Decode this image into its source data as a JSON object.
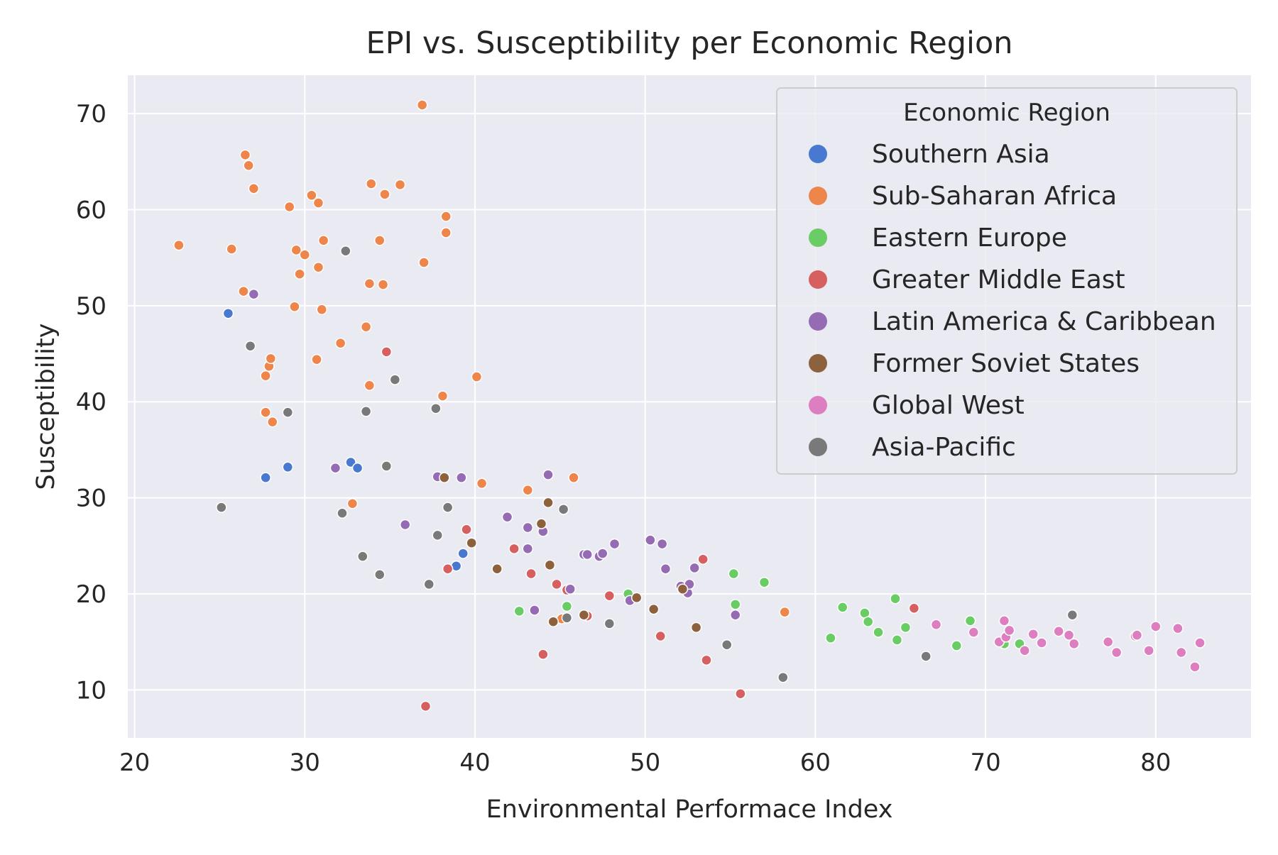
{
  "chart_data": {
    "type": "scatter",
    "title": "EPI vs. Susceptibility per Economic Region",
    "xlabel": "Environmental Performace Index",
    "ylabel": "Susceptibility",
    "xlim": [
      19.6,
      85.6
    ],
    "ylim": [
      5.0,
      74.0
    ],
    "x_ticks": [
      20,
      30,
      40,
      50,
      60,
      70,
      80
    ],
    "y_ticks": [
      10,
      20,
      30,
      40,
      50,
      60,
      70
    ],
    "grid": true,
    "background": "#eaeaf2",
    "legend": {
      "title": "Economic Region",
      "placement": "top-right"
    },
    "series": [
      {
        "name": "Southern Asia",
        "color": "#4878d0",
        "points": [
          [
            25.5,
            49.2
          ],
          [
            27.7,
            32.1
          ],
          [
            29.0,
            33.2
          ],
          [
            32.7,
            33.7
          ],
          [
            33.1,
            33.1
          ],
          [
            39.3,
            24.2
          ],
          [
            38.9,
            22.9
          ]
        ]
      },
      {
        "name": "Sub-Saharan Africa",
        "color": "#ee854a",
        "points": [
          [
            22.6,
            56.3
          ],
          [
            25.7,
            55.9
          ],
          [
            26.5,
            65.7
          ],
          [
            26.7,
            64.6
          ],
          [
            27.0,
            62.2
          ],
          [
            26.4,
            51.5
          ],
          [
            27.7,
            42.7
          ],
          [
            27.9,
            43.7
          ],
          [
            28.0,
            44.5
          ],
          [
            27.7,
            38.9
          ],
          [
            28.1,
            37.9
          ],
          [
            29.1,
            60.3
          ],
          [
            29.4,
            49.9
          ],
          [
            29.5,
            55.8
          ],
          [
            29.7,
            53.3
          ],
          [
            30.0,
            55.3
          ],
          [
            30.4,
            61.5
          ],
          [
            30.7,
            44.4
          ],
          [
            30.8,
            54.0
          ],
          [
            30.8,
            60.7
          ],
          [
            31.0,
            49.6
          ],
          [
            31.1,
            56.8
          ],
          [
            32.1,
            46.1
          ],
          [
            32.8,
            29.4
          ],
          [
            33.6,
            47.8
          ],
          [
            33.8,
            52.3
          ],
          [
            33.8,
            41.7
          ],
          [
            33.9,
            62.7
          ],
          [
            34.4,
            56.8
          ],
          [
            34.6,
            52.2
          ],
          [
            34.7,
            61.6
          ],
          [
            35.6,
            62.6
          ],
          [
            36.9,
            70.9
          ],
          [
            37.0,
            54.5
          ],
          [
            38.1,
            40.6
          ],
          [
            38.3,
            59.3
          ],
          [
            38.3,
            57.6
          ],
          [
            40.1,
            42.6
          ],
          [
            40.4,
            31.5
          ],
          [
            43.1,
            30.8
          ],
          [
            45.8,
            32.1
          ],
          [
            45.1,
            17.4
          ],
          [
            58.2,
            18.1
          ]
        ]
      },
      {
        "name": "Eastern Europe",
        "color": "#6acc64",
        "points": [
          [
            42.6,
            18.2
          ],
          [
            45.4,
            18.7
          ],
          [
            49.0,
            20.0
          ],
          [
            55.2,
            22.1
          ],
          [
            55.3,
            18.9
          ],
          [
            57.0,
            21.2
          ],
          [
            60.9,
            15.4
          ],
          [
            61.6,
            18.6
          ],
          [
            62.9,
            18.0
          ],
          [
            63.1,
            17.1
          ],
          [
            63.7,
            16.0
          ],
          [
            64.7,
            19.5
          ],
          [
            64.8,
            15.2
          ],
          [
            65.3,
            16.5
          ],
          [
            68.3,
            14.6
          ],
          [
            69.1,
            17.2
          ],
          [
            71.1,
            14.8
          ],
          [
            72.0,
            14.8
          ]
        ]
      },
      {
        "name": "Greater Middle East",
        "color": "#d65f5f",
        "points": [
          [
            34.8,
            45.2
          ],
          [
            37.1,
            8.3
          ],
          [
            38.4,
            22.6
          ],
          [
            39.5,
            26.7
          ],
          [
            42.3,
            24.7
          ],
          [
            43.3,
            22.1
          ],
          [
            44.0,
            13.7
          ],
          [
            44.8,
            21.0
          ],
          [
            45.4,
            20.4
          ],
          [
            46.6,
            17.7
          ],
          [
            47.9,
            19.8
          ],
          [
            50.9,
            15.6
          ],
          [
            53.4,
            23.6
          ],
          [
            53.6,
            13.1
          ],
          [
            55.6,
            9.6
          ],
          [
            65.8,
            18.5
          ]
        ]
      },
      {
        "name": "Latin America & Caribbean",
        "color": "#956cb4",
        "points": [
          [
            27.0,
            51.2
          ],
          [
            31.8,
            33.1
          ],
          [
            35.9,
            27.2
          ],
          [
            37.8,
            32.2
          ],
          [
            39.2,
            32.1
          ],
          [
            41.9,
            28.0
          ],
          [
            43.1,
            26.9
          ],
          [
            43.1,
            24.7
          ],
          [
            43.5,
            18.3
          ],
          [
            44.0,
            26.5
          ],
          [
            44.3,
            32.4
          ],
          [
            45.6,
            20.5
          ],
          [
            46.4,
            24.1
          ],
          [
            46.6,
            24.1
          ],
          [
            47.3,
            23.9
          ],
          [
            47.5,
            24.2
          ],
          [
            48.2,
            25.2
          ],
          [
            49.1,
            19.3
          ],
          [
            50.3,
            25.6
          ],
          [
            51.0,
            25.2
          ],
          [
            51.2,
            22.6
          ],
          [
            52.1,
            20.8
          ],
          [
            52.5,
            20.1
          ],
          [
            52.6,
            21.0
          ],
          [
            52.9,
            22.7
          ],
          [
            55.3,
            17.8
          ]
        ]
      },
      {
        "name": "Former Soviet States",
        "color": "#8c613c",
        "points": [
          [
            38.2,
            32.1
          ],
          [
            39.8,
            25.3
          ],
          [
            41.3,
            22.6
          ],
          [
            43.9,
            27.3
          ],
          [
            44.3,
            29.5
          ],
          [
            44.4,
            23.0
          ],
          [
            44.6,
            17.1
          ],
          [
            46.4,
            17.8
          ],
          [
            49.5,
            19.6
          ],
          [
            50.5,
            18.4
          ],
          [
            52.2,
            20.5
          ],
          [
            53.0,
            16.5
          ]
        ]
      },
      {
        "name": "Global West",
        "color": "#dc7ec0",
        "points": [
          [
            67.1,
            16.8
          ],
          [
            69.3,
            16.0
          ],
          [
            70.8,
            15.0
          ],
          [
            71.1,
            17.2
          ],
          [
            71.2,
            15.5
          ],
          [
            71.4,
            16.2
          ],
          [
            72.3,
            14.1
          ],
          [
            72.8,
            15.8
          ],
          [
            73.3,
            14.9
          ],
          [
            74.3,
            16.1
          ],
          [
            74.9,
            15.7
          ],
          [
            75.2,
            14.8
          ],
          [
            77.2,
            15.0
          ],
          [
            77.7,
            13.9
          ],
          [
            78.8,
            15.6
          ],
          [
            78.9,
            15.7
          ],
          [
            79.6,
            14.1
          ],
          [
            80.0,
            16.6
          ],
          [
            81.3,
            16.4
          ],
          [
            81.5,
            13.9
          ],
          [
            82.3,
            12.4
          ],
          [
            82.6,
            14.9
          ]
        ]
      },
      {
        "name": "Asia-Pacific",
        "color": "#797979",
        "points": [
          [
            25.1,
            29.0
          ],
          [
            26.8,
            45.8
          ],
          [
            29.0,
            38.9
          ],
          [
            32.2,
            28.4
          ],
          [
            32.4,
            55.7
          ],
          [
            33.4,
            23.9
          ],
          [
            33.6,
            39.0
          ],
          [
            34.4,
            22.0
          ],
          [
            34.8,
            33.3
          ],
          [
            35.3,
            42.3
          ],
          [
            37.3,
            21.0
          ],
          [
            37.7,
            39.3
          ],
          [
            37.8,
            26.1
          ],
          [
            38.4,
            29.0
          ],
          [
            45.2,
            28.8
          ],
          [
            45.4,
            17.5
          ],
          [
            47.9,
            16.9
          ],
          [
            54.8,
            14.7
          ],
          [
            58.1,
            11.3
          ],
          [
            66.5,
            13.5
          ],
          [
            75.1,
            17.8
          ]
        ]
      }
    ]
  }
}
